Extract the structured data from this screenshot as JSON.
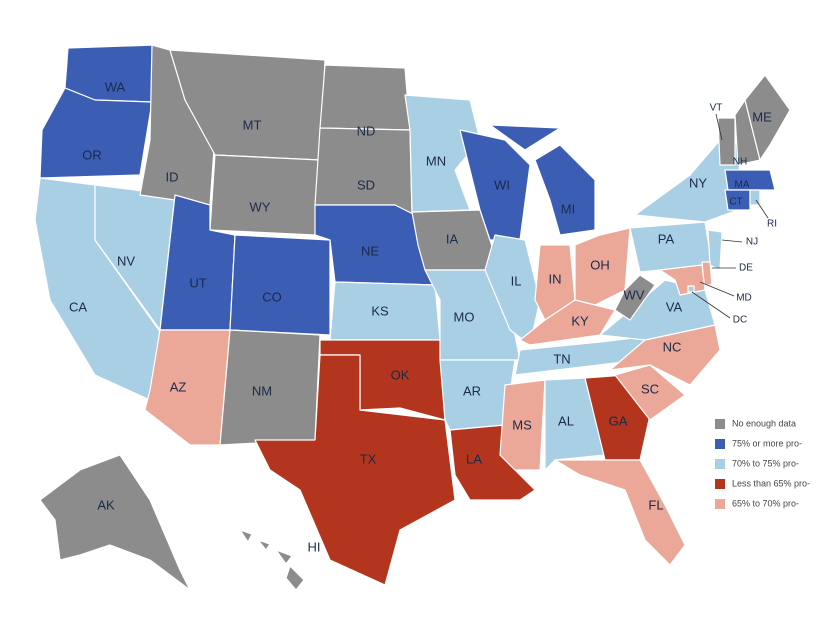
{
  "legend": {
    "items": [
      {
        "label": "No enough data",
        "color": "#8c8c8c"
      },
      {
        "label": "75% or more pro-",
        "color": "#3b5eb4"
      },
      {
        "label": "70% to 75% pro-",
        "color": "#a9cfe4"
      },
      {
        "label": "Less than 65% pro-",
        "color": "#b3351d"
      },
      {
        "label": "65% to 70% pro-",
        "color": "#eba797"
      }
    ]
  },
  "states": [
    {
      "label": "WA",
      "color": "#3b5eb4"
    },
    {
      "label": "OR",
      "color": "#3b5eb4"
    },
    {
      "label": "CA",
      "color": "#a9cfe4"
    },
    {
      "label": "NV",
      "color": "#a9cfe4"
    },
    {
      "label": "ID",
      "color": "#8c8c8c"
    },
    {
      "label": "MT",
      "color": "#8c8c8c"
    },
    {
      "label": "WY",
      "color": "#8c8c8c"
    },
    {
      "label": "UT",
      "color": "#3b5eb4"
    },
    {
      "label": "AZ",
      "color": "#eba797"
    },
    {
      "label": "CO",
      "color": "#3b5eb4"
    },
    {
      "label": "NM",
      "color": "#8c8c8c"
    },
    {
      "label": "ND",
      "color": "#8c8c8c"
    },
    {
      "label": "SD",
      "color": "#8c8c8c"
    },
    {
      "label": "NE",
      "color": "#3b5eb4"
    },
    {
      "label": "KS",
      "color": "#a9cfe4"
    },
    {
      "label": "OK",
      "color": "#b3351d"
    },
    {
      "label": "TX",
      "color": "#b3351d"
    },
    {
      "label": "MN",
      "color": "#a9cfe4"
    },
    {
      "label": "IA",
      "color": "#8c8c8c"
    },
    {
      "label": "MO",
      "color": "#a9cfe4"
    },
    {
      "label": "AR",
      "color": "#a9cfe4"
    },
    {
      "label": "LA",
      "color": "#b3351d"
    },
    {
      "label": "WI",
      "color": "#3b5eb4"
    },
    {
      "label": "IL",
      "color": "#a9cfe4"
    },
    {
      "label": "MI",
      "color": "#3b5eb4"
    },
    {
      "label": "IN",
      "color": "#eba797"
    },
    {
      "label": "OH",
      "color": "#eba797"
    },
    {
      "label": "KY",
      "color": "#eba797"
    },
    {
      "label": "TN",
      "color": "#a9cfe4"
    },
    {
      "label": "MS",
      "color": "#eba797"
    },
    {
      "label": "AL",
      "color": "#a9cfe4"
    },
    {
      "label": "GA",
      "color": "#b3351d"
    },
    {
      "label": "FL",
      "color": "#eba797"
    },
    {
      "label": "SC",
      "color": "#eba797"
    },
    {
      "label": "NC",
      "color": "#eba797"
    },
    {
      "label": "VA",
      "color": "#a9cfe4"
    },
    {
      "label": "WV",
      "color": "#8c8c8c"
    },
    {
      "label": "PA",
      "color": "#a9cfe4"
    },
    {
      "label": "NY",
      "color": "#a9cfe4"
    },
    {
      "label": "VT",
      "color": "#8c8c8c"
    },
    {
      "label": "NH",
      "color": "#8c8c8c"
    },
    {
      "label": "ME",
      "color": "#8c8c8c"
    },
    {
      "label": "MA",
      "color": "#3b5eb4"
    },
    {
      "label": "CT",
      "color": "#3b5eb4"
    },
    {
      "label": "RI",
      "color": "#a9cfe4"
    },
    {
      "label": "NJ",
      "color": "#a9cfe4"
    },
    {
      "label": "DE",
      "color": "#eba797"
    },
    {
      "label": "MD",
      "color": "#eba797"
    },
    {
      "label": "DC",
      "color": "#a9cfe4"
    },
    {
      "label": "AK",
      "color": "#8c8c8c"
    },
    {
      "label": "HI",
      "color": "#8c8c8c"
    }
  ]
}
